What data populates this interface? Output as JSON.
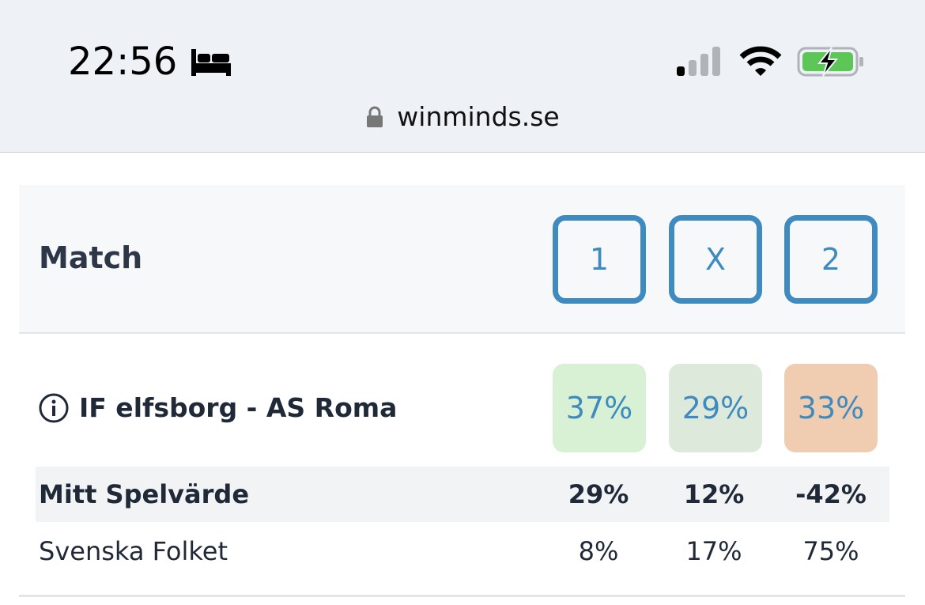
{
  "status_bar": {
    "time": "22:56",
    "url": "winminds.se"
  },
  "header": {
    "title": "Match",
    "options": [
      "1",
      "X",
      "2"
    ]
  },
  "match": {
    "name": "IF elfsborg - AS Roma",
    "probabilities": [
      "37%",
      "29%",
      "33%"
    ]
  },
  "rows": [
    {
      "label": "Mitt Spelvärde",
      "values": [
        "29%",
        "12%",
        "-42%"
      ]
    },
    {
      "label": "Svenska Folket",
      "values": [
        "8%",
        "17%",
        "75%"
      ]
    }
  ]
}
